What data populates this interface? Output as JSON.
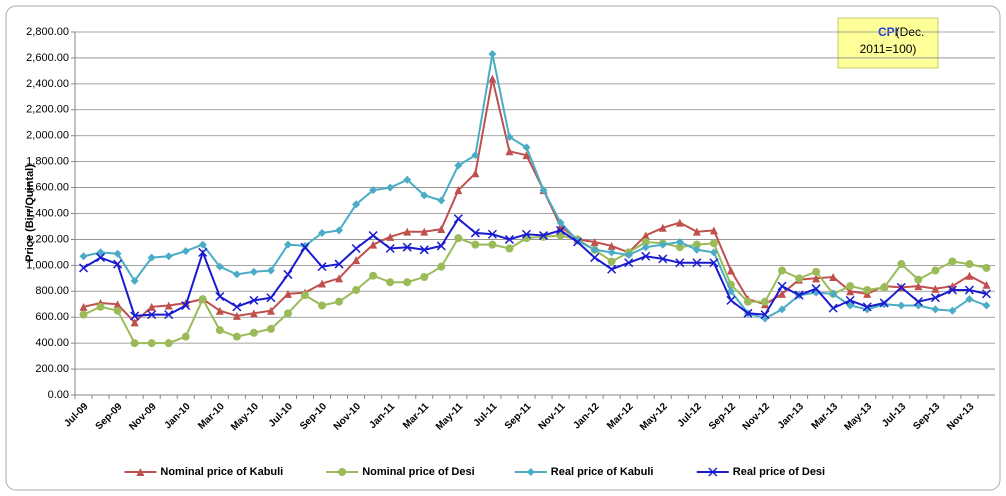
{
  "chart_data": {
    "type": "line",
    "y_label": "Price (Birr/Quintal)",
    "annotation": {
      "label": "CPI",
      "note_lines": [
        "(Dec.",
        "2011=100)"
      ]
    },
    "categories": [
      "Jul-09",
      null,
      "Sep-09",
      null,
      "Nov-09",
      null,
      "Jan-10",
      null,
      "Mar-10",
      null,
      "May-10",
      null,
      "Jul-10",
      null,
      "Sep-10",
      null,
      "Nov-10",
      null,
      "Jan-11",
      null,
      "Mar-11",
      null,
      "May-11",
      null,
      "Jul-11",
      null,
      "Sep-11",
      null,
      "Nov-11",
      null,
      "Jan-12",
      null,
      "Mar-12",
      null,
      "May-12",
      null,
      "Jul-12",
      null,
      "Sep-12",
      null,
      "Nov-12",
      null,
      "Jan-13",
      null,
      "Mar-13",
      null,
      "May-13",
      null,
      "Jul-13",
      null,
      "Sep-13",
      null,
      "Nov-13",
      null
    ],
    "ylim": [
      0,
      2800
    ],
    "yticks": [
      {
        "value": 0,
        "label": "0.00"
      },
      {
        "value": 200,
        "label": "200.00"
      },
      {
        "value": 400,
        "label": "400.00"
      },
      {
        "value": 600,
        "label": "600.00"
      },
      {
        "value": 800,
        "label": "800.00"
      },
      {
        "value": 1000,
        "label": "1,000.00"
      },
      {
        "value": 1200,
        "label": "1,200.00"
      },
      {
        "value": 1400,
        "label": "1,400.00"
      },
      {
        "value": 1600,
        "label": "1,600.00"
      },
      {
        "value": 1800,
        "label": "1,800.00"
      },
      {
        "value": 2000,
        "label": "2,000.00"
      },
      {
        "value": 2200,
        "label": "2,200.00"
      },
      {
        "value": 2400,
        "label": "2,400.00"
      },
      {
        "value": 2600,
        "label": "2,600.00"
      },
      {
        "value": 2800,
        "label": "2,800.00"
      }
    ],
    "grid": true,
    "legend": "bottom",
    "series": [
      {
        "name": "Nominal price of Kabuli",
        "color": "#c0504d",
        "marker": "triangle",
        "values": [
          680,
          710,
          700,
          560,
          680,
          690,
          710,
          740,
          650,
          610,
          630,
          650,
          780,
          790,
          860,
          900,
          1040,
          1160,
          1220,
          1260,
          1260,
          1280,
          1580,
          1710,
          2440,
          1880,
          1850,
          1580,
          1300,
          1200,
          1180,
          1150,
          1100,
          1230,
          1290,
          1330,
          1260,
          1270,
          960,
          740,
          700,
          780,
          890,
          900,
          910,
          800,
          780,
          840,
          830,
          840,
          820,
          840,
          920,
          850
        ]
      },
      {
        "name": "Nominal price of Desi",
        "color": "#9bbb59",
        "marker": "circle",
        "values": [
          620,
          680,
          650,
          400,
          400,
          400,
          450,
          740,
          500,
          450,
          480,
          510,
          630,
          770,
          690,
          720,
          810,
          920,
          870,
          870,
          910,
          990,
          1210,
          1160,
          1160,
          1130,
          1210,
          1220,
          1230,
          1200,
          1120,
          1030,
          1100,
          1180,
          1170,
          1140,
          1160,
          1170,
          850,
          720,
          720,
          960,
          900,
          950,
          780,
          840,
          810,
          830,
          1010,
          890,
          960,
          1030,
          1010,
          980
        ]
      },
      {
        "name": "Real price of Kabuli",
        "color": "#4bacc6",
        "marker": "diamond",
        "values": [
          1070,
          1100,
          1090,
          880,
          1060,
          1070,
          1110,
          1160,
          990,
          930,
          950,
          960,
          1160,
          1150,
          1250,
          1270,
          1470,
          1580,
          1600,
          1660,
          1540,
          1500,
          1770,
          1850,
          2630,
          1990,
          1910,
          1580,
          1330,
          1190,
          1120,
          1100,
          1080,
          1140,
          1160,
          1180,
          1120,
          1100,
          800,
          630,
          590,
          660,
          770,
          790,
          780,
          690,
          660,
          700,
          690,
          690,
          660,
          650,
          740,
          690
        ]
      },
      {
        "name": "Real price of Desi",
        "color": "#1a1ad0",
        "marker": "x",
        "values": [
          980,
          1060,
          1010,
          610,
          620,
          620,
          690,
          1100,
          760,
          680,
          730,
          750,
          930,
          1140,
          990,
          1010,
          1130,
          1230,
          1130,
          1140,
          1120,
          1150,
          1360,
          1250,
          1240,
          1200,
          1240,
          1230,
          1270,
          1180,
          1060,
          970,
          1020,
          1070,
          1050,
          1020,
          1020,
          1020,
          730,
          630,
          620,
          840,
          770,
          820,
          670,
          730,
          680,
          710,
          830,
          720,
          750,
          810,
          810,
          780
        ]
      }
    ]
  }
}
